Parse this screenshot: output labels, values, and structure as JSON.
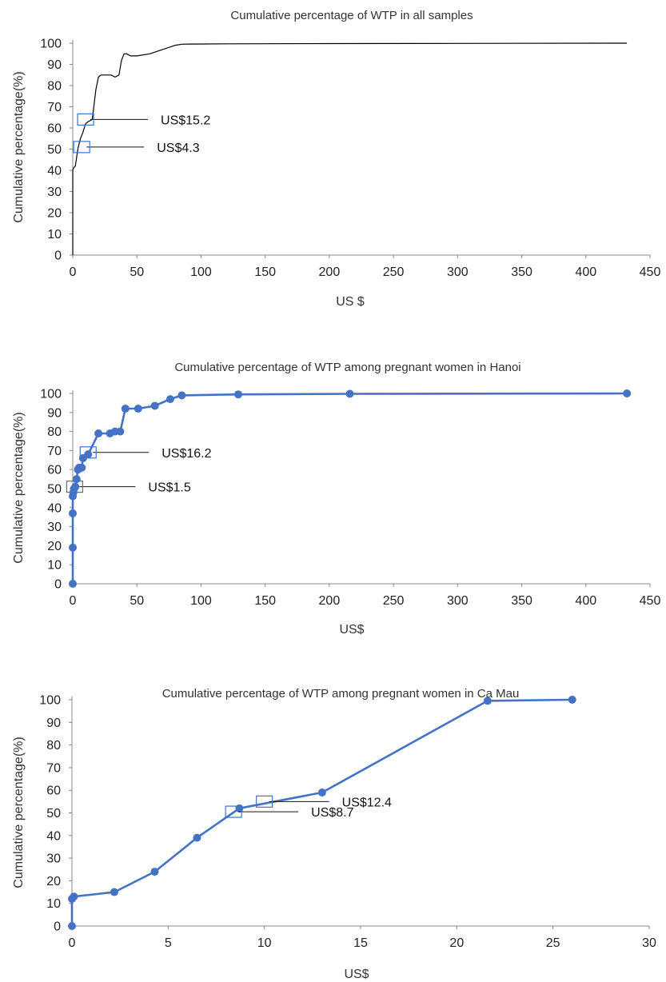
{
  "chart_data": [
    {
      "type": "line",
      "title": "Cumulative percentage of WTP in all samples",
      "xlabel": "US $",
      "ylabel": "Cumulative percentage(%)",
      "xlim": [
        0,
        450
      ],
      "ylim": [
        0,
        100
      ],
      "xticks": [
        0,
        50,
        100,
        150,
        200,
        250,
        300,
        350,
        400,
        450
      ],
      "yticks": [
        0,
        10,
        20,
        30,
        40,
        50,
        60,
        70,
        80,
        90,
        100
      ],
      "grid": false,
      "markers": false,
      "line_color": "#000000",
      "series": [
        {
          "x": [
            0,
            0,
            0.5,
            2,
            4,
            4.3,
            6,
            8,
            10,
            12,
            15.2,
            18,
            20,
            22,
            26,
            30,
            33,
            36,
            38,
            40,
            42,
            45,
            50,
            60,
            70,
            80,
            85,
            90,
            120,
            200,
            300,
            432
          ],
          "y": [
            0,
            40,
            41,
            42,
            50,
            51,
            55,
            58,
            62,
            63,
            64,
            78,
            84,
            85,
            85,
            85,
            84,
            85,
            92,
            95,
            95,
            94,
            94,
            95,
            97,
            99,
            99.5,
            99.6,
            99.7,
            99.8,
            99.9,
            100
          ]
        }
      ],
      "annotations": [
        {
          "label": "US$15.2",
          "x": 10,
          "y": 64
        },
        {
          "label": "US$4.3",
          "x": 7,
          "y": 51
        }
      ]
    },
    {
      "type": "line",
      "title": "Cumulative percentage of WTP among pregnant women in  Hanoi",
      "xlabel": "US$",
      "ylabel": "Cumulative percentage(%)",
      "xlim": [
        0,
        450
      ],
      "ylim": [
        0,
        100
      ],
      "xticks": [
        0,
        50,
        100,
        150,
        200,
        250,
        300,
        350,
        400,
        450
      ],
      "yticks": [
        0,
        10,
        20,
        30,
        40,
        50,
        60,
        70,
        80,
        90,
        100
      ],
      "grid": false,
      "markers": true,
      "line_color": "#4472c4",
      "series": [
        {
          "x": [
            0,
            0,
            0,
            0,
            0.5,
            1,
            2,
            3,
            4,
            5,
            7,
            8,
            12,
            20,
            29,
            33,
            37,
            41,
            51,
            64,
            76,
            85,
            129,
            216,
            432
          ],
          "y": [
            0,
            19,
            37,
            46,
            48,
            50,
            51,
            55,
            60,
            61,
            61,
            66,
            68,
            79,
            79,
            80,
            80,
            92,
            92,
            93.5,
            97,
            99,
            99.5,
            99.8,
            100
          ]
        }
      ],
      "annotations": [
        {
          "label": "US$16.2",
          "x": 12,
          "y": 69
        },
        {
          "label": "US$1.5",
          "x": 1.5,
          "y": 51
        }
      ]
    },
    {
      "type": "line",
      "title": "Cumulative percentage of WTP among pregnant women in  Ca Mau",
      "xlabel": "US$",
      "ylabel": "Cumulative percentage(%)",
      "xlim": [
        0,
        30
      ],
      "ylim": [
        0,
        100
      ],
      "xticks": [
        0,
        5,
        10,
        15,
        20,
        25,
        30
      ],
      "yticks": [
        0,
        10,
        20,
        30,
        40,
        50,
        60,
        70,
        80,
        90,
        100
      ],
      "grid": false,
      "markers": true,
      "line_color": "#4472c4",
      "series": [
        {
          "x": [
            0,
            0,
            0.1,
            2.2,
            4.3,
            6.5,
            8.7,
            13,
            21.6,
            26
          ],
          "y": [
            0,
            12,
            13,
            15,
            24,
            39,
            52,
            59,
            99.5,
            100
          ]
        }
      ],
      "annotations": [
        {
          "label": "US$12.4",
          "x": 10,
          "y": 55
        },
        {
          "label": "US$8.7",
          "x": 8.4,
          "y": 50.5
        }
      ]
    }
  ]
}
